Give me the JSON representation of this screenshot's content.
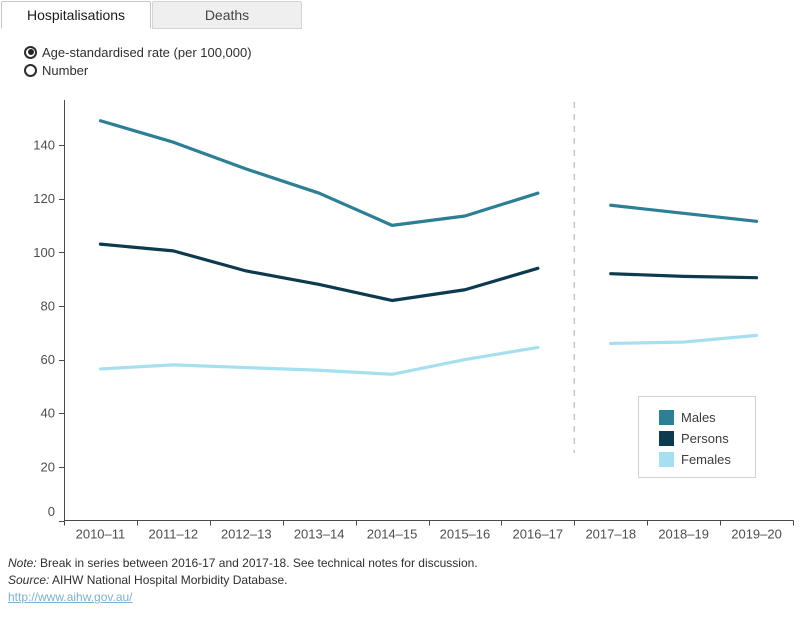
{
  "tabs": [
    {
      "label": "Hospitalisations",
      "active": true
    },
    {
      "label": "Deaths",
      "active": false
    }
  ],
  "controls": {
    "options": [
      {
        "label": "Age-standardised rate (per 100,000)",
        "selected": true
      },
      {
        "label": "Number",
        "selected": false
      }
    ]
  },
  "chart_data": {
    "type": "line",
    "categories": [
      "2010–11",
      "2011–12",
      "2012–13",
      "2013–14",
      "2014–15",
      "2015–16",
      "2016–17",
      "2017–18",
      "2018–19",
      "2019–20"
    ],
    "series": [
      {
        "name": "Males",
        "color": "#2d7f96",
        "values": [
          149,
          141,
          131,
          122,
          110,
          113.5,
          122,
          117.5,
          114.5,
          111.5
        ]
      },
      {
        "name": "Persons",
        "color": "#0d3a4e",
        "values": [
          103,
          100.5,
          93,
          88,
          82,
          86,
          94,
          92,
          91,
          90.5
        ]
      },
      {
        "name": "Females",
        "color": "#a6dfef",
        "values": [
          56.5,
          58,
          57,
          56,
          54.5,
          60,
          64.5,
          66,
          66.5,
          69
        ]
      }
    ],
    "title": "",
    "xlabel": "",
    "ylabel": "Age-standardised rate (per 100,000)",
    "ylim": [
      0,
      157
    ],
    "y_axis_ticks": [
      0,
      20,
      40,
      60,
      80,
      100,
      120,
      140
    ],
    "grid": false,
    "break_between": [
      "2016–17",
      "2017–18"
    ],
    "legend": {
      "position": "right-lower",
      "entries": [
        "Males",
        "Persons",
        "Females"
      ]
    }
  },
  "colors": {
    "axis_line": "#4a4a4a",
    "axis_text": "#4e4e4e",
    "break_dash": "#c8c8c8"
  },
  "notes": {
    "note_label": "Note:",
    "note_body": " Break in series between 2016-17 and 2017-18. See technical notes for discussion.",
    "source_label": "Source:",
    "source_body": " AIHW National Hospital Morbidity Database.",
    "link_text": "http://www.aihw.gov.au/"
  }
}
